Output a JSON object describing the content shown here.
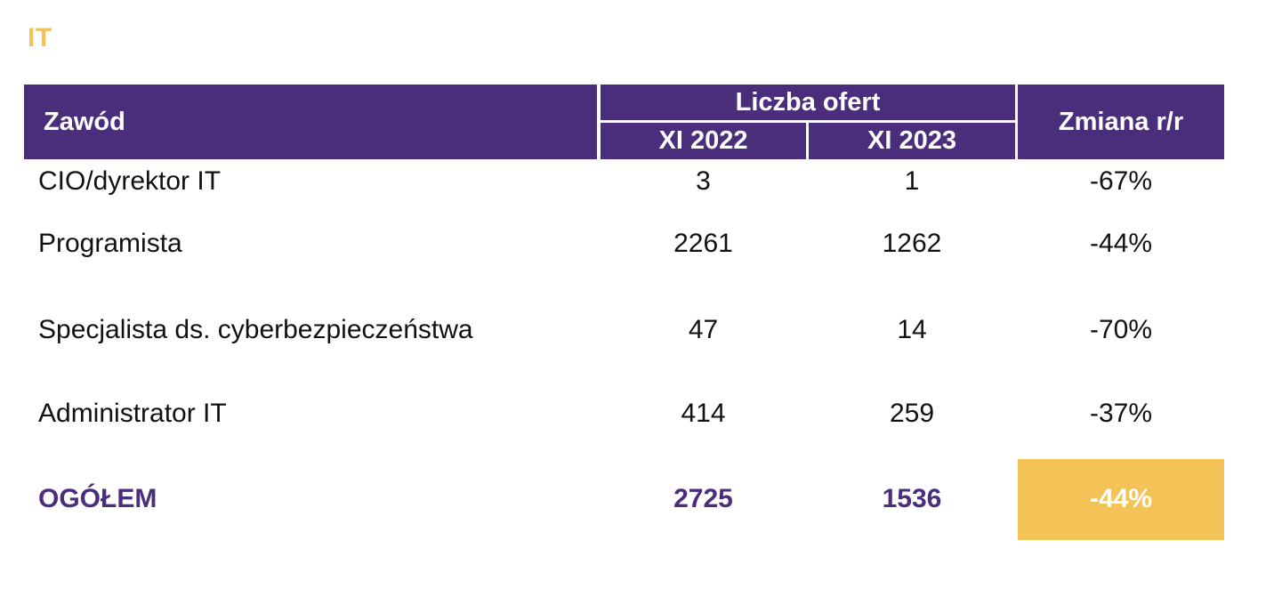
{
  "section_title": "IT",
  "header": {
    "col_profession": "Zawód",
    "col_offers": "Liczba ofert",
    "col_year1": "XI 2022",
    "col_year2": "XI 2023",
    "col_change": "Zmiana r/r"
  },
  "rows": [
    {
      "name": "CIO/dyrektor IT",
      "y1": "3",
      "y2": "1",
      "change": "-67%"
    },
    {
      "name": "Programista",
      "y1": "2261",
      "y2": "1262",
      "change": "-44%"
    },
    {
      "name": "Specjalista ds. cyberbezpieczeństwa",
      "y1": "47",
      "y2": "14",
      "change": "-70%"
    },
    {
      "name": "Administrator IT",
      "y1": "414",
      "y2": "259",
      "change": "-37%"
    }
  ],
  "total": {
    "name": "OGÓŁEM",
    "y1": "2725",
    "y2": "1536",
    "change": "-44%"
  },
  "colors": {
    "header_bg": "#4a2e7c",
    "accent_yellow": "#f4c357",
    "total_text": "#4a2e7c"
  }
}
